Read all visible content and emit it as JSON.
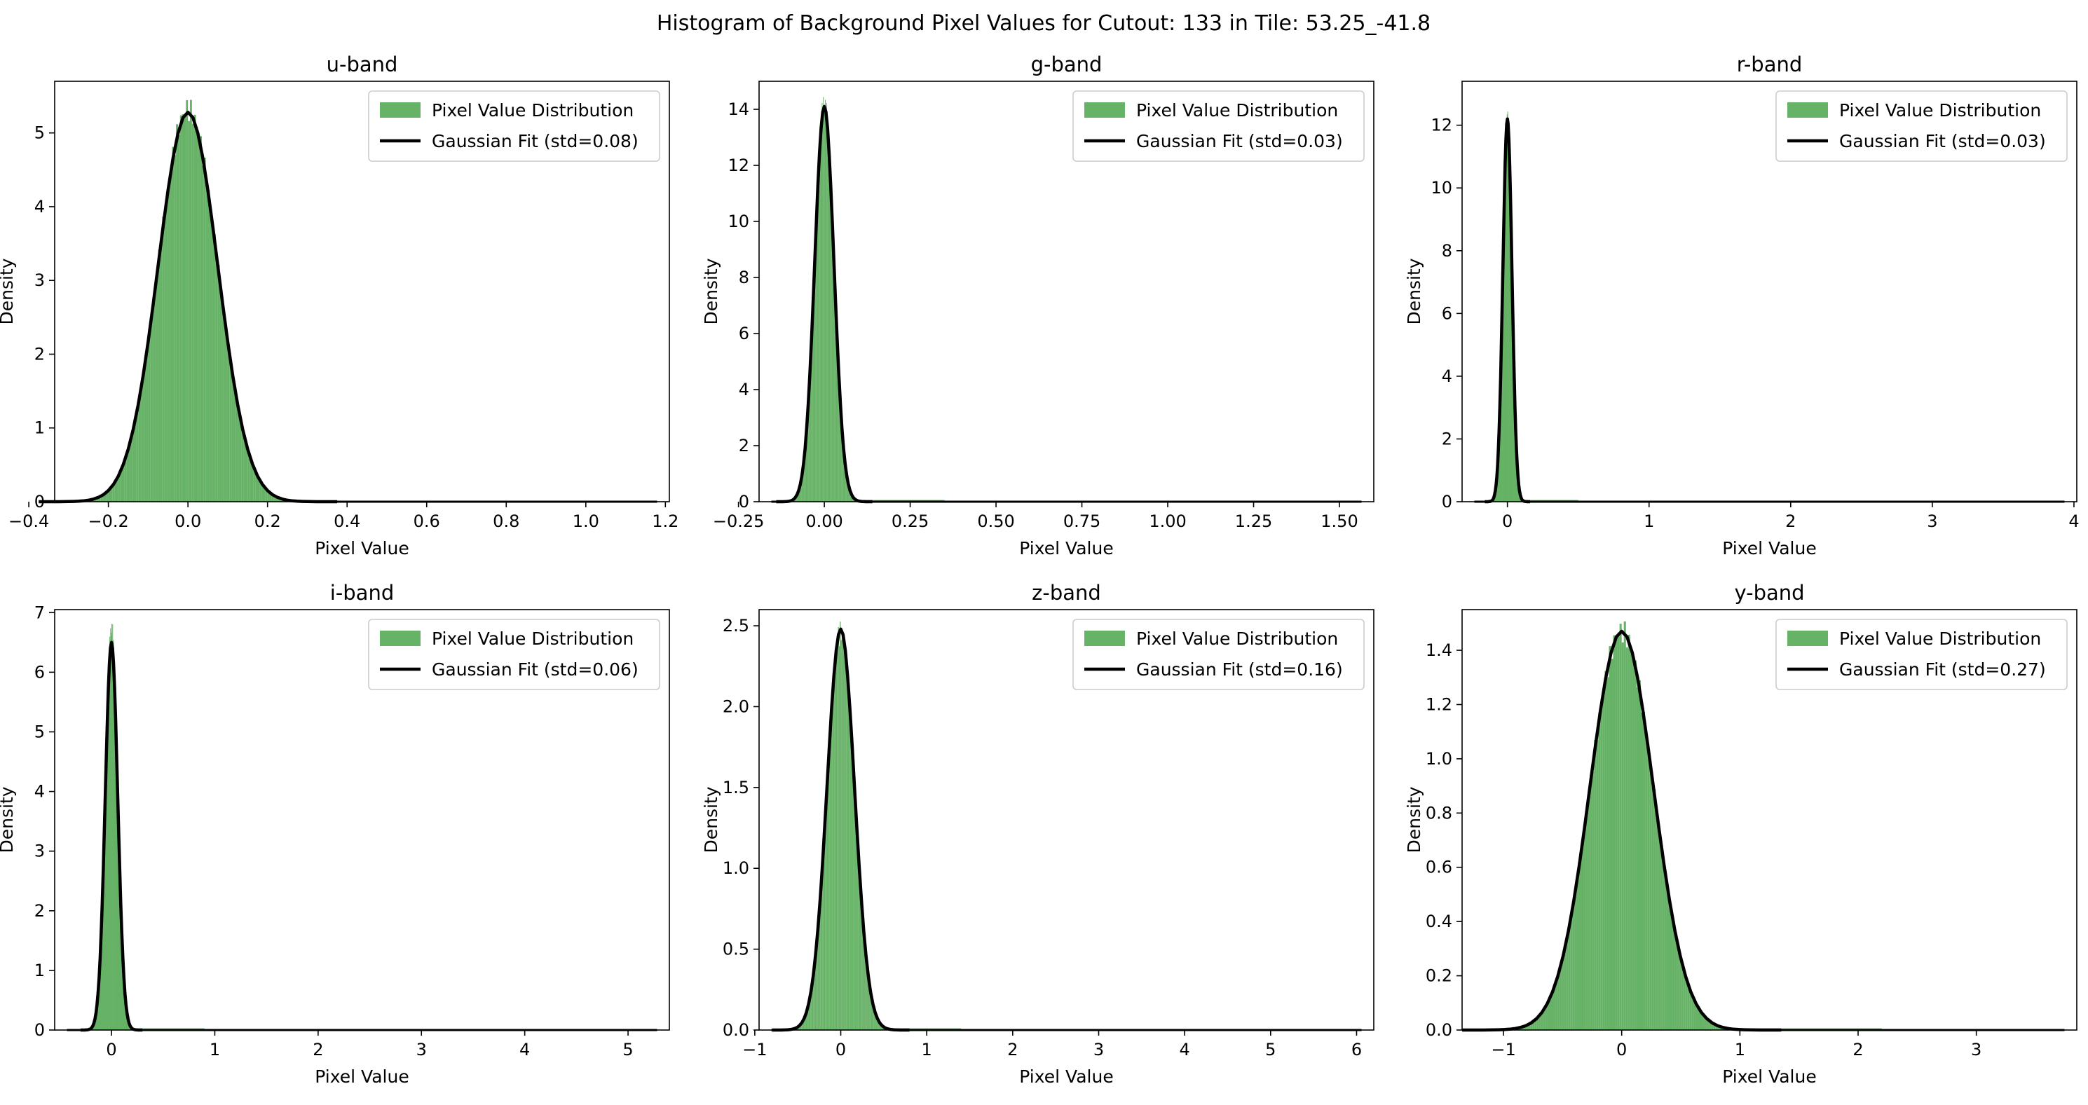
{
  "figure": {
    "suptitle": "Histogram of Background Pixel Values for Cutout: 133 in Tile: 53.25_-41.8",
    "hist_color": "#66b266",
    "fit_color": "#000000"
  },
  "chart_data": [
    {
      "type": "bar",
      "title": "u-band",
      "xlabel": "Pixel Value",
      "ylabel": "Density",
      "xlim": [
        -0.335,
        1.21
      ],
      "ylim": [
        0,
        5.7
      ],
      "xticks": [
        -0.4,
        -0.2,
        0.0,
        0.2,
        0.4,
        0.6,
        0.8,
        1.0,
        1.2
      ],
      "xtick_labels": [
        "−0.4",
        "−0.2",
        "0.0",
        "0.2",
        "0.4",
        "0.6",
        "0.8",
        "1.0",
        "1.2"
      ],
      "yticks": [
        0,
        1,
        2,
        3,
        4,
        5
      ],
      "ytick_labels": [
        "0",
        "1",
        "2",
        "3",
        "4",
        "5"
      ],
      "series": [
        {
          "name": "Pixel Value Distribution",
          "kind": "histogram",
          "mean": 0.0,
          "std": 0.075,
          "peak": 5.32,
          "tail_extent": 0.3
        },
        {
          "name": "Gaussian Fit (std=0.08)",
          "kind": "gaussian",
          "mean": 0.0,
          "std": 0.075,
          "peak": 5.28
        }
      ],
      "legend": "top-right"
    },
    {
      "type": "bar",
      "title": "g-band",
      "xlabel": "Pixel Value",
      "ylabel": "Density",
      "xlim": [
        -0.19,
        1.6
      ],
      "ylim": [
        0,
        15
      ],
      "xticks": [
        -0.25,
        0.0,
        0.25,
        0.5,
        0.75,
        1.0,
        1.25,
        1.5
      ],
      "xtick_labels": [
        "−0.25",
        "0.00",
        "0.25",
        "0.50",
        "0.75",
        "1.00",
        "1.25",
        "1.50"
      ],
      "yticks": [
        0,
        2,
        4,
        6,
        8,
        10,
        12,
        14
      ],
      "ytick_labels": [
        "0",
        "2",
        "4",
        "6",
        "8",
        "10",
        "12",
        "14"
      ],
      "series": [
        {
          "name": "Pixel Value Distribution",
          "kind": "histogram",
          "mean": 0.0,
          "std": 0.028,
          "peak": 14.2,
          "tail_extent": 0.35
        },
        {
          "name": "Gaussian Fit (std=0.03)",
          "kind": "gaussian",
          "mean": 0.0,
          "std": 0.028,
          "peak": 14.1
        }
      ],
      "legend": "top-right"
    },
    {
      "type": "bar",
      "title": "r-band",
      "xlabel": "Pixel Value",
      "ylabel": "Density",
      "xlim": [
        -0.32,
        4.02
      ],
      "ylim": [
        0,
        13.4
      ],
      "xticks": [
        0,
        1,
        2,
        3,
        4
      ],
      "xtick_labels": [
        "0",
        "1",
        "2",
        "3",
        "4"
      ],
      "yticks": [
        0,
        2,
        4,
        6,
        8,
        10,
        12
      ],
      "ytick_labels": [
        "0",
        "2",
        "4",
        "6",
        "8",
        "10",
        "12"
      ],
      "series": [
        {
          "name": "Pixel Value Distribution",
          "kind": "histogram",
          "mean": 0.0,
          "std": 0.032,
          "peak": 12.1,
          "tail_extent": 0.5
        },
        {
          "name": "Gaussian Fit (std=0.03)",
          "kind": "gaussian",
          "mean": 0.0,
          "std": 0.032,
          "peak": 12.2
        }
      ],
      "legend": "top-right"
    },
    {
      "type": "bar",
      "title": "i-band",
      "xlabel": "Pixel Value",
      "ylabel": "Density",
      "xlim": [
        -0.55,
        5.4
      ],
      "ylim": [
        0,
        7.05
      ],
      "xticks": [
        0,
        1,
        2,
        3,
        4,
        5
      ],
      "xtick_labels": [
        "0",
        "1",
        "2",
        "3",
        "4",
        "5"
      ],
      "yticks": [
        0,
        1,
        2,
        3,
        4,
        5,
        6,
        7
      ],
      "ytick_labels": [
        "0",
        "1",
        "2",
        "3",
        "4",
        "5",
        "6",
        "7"
      ],
      "series": [
        {
          "name": "Pixel Value Distribution",
          "kind": "histogram",
          "mean": 0.0,
          "std": 0.06,
          "peak": 6.7,
          "tail_extent": 0.9
        },
        {
          "name": "Gaussian Fit (std=0.06)",
          "kind": "gaussian",
          "mean": 0.0,
          "std": 0.06,
          "peak": 6.5
        }
      ],
      "legend": "top-right"
    },
    {
      "type": "bar",
      "title": "z-band",
      "xlabel": "Pixel Value",
      "ylabel": "Density",
      "xlim": [
        -0.95,
        6.2
      ],
      "ylim": [
        0,
        2.6
      ],
      "xticks": [
        -1,
        0,
        1,
        2,
        3,
        4,
        5,
        6
      ],
      "xtick_labels": [
        "−1",
        "0",
        "1",
        "2",
        "3",
        "4",
        "5",
        "6"
      ],
      "yticks": [
        0.0,
        0.5,
        1.0,
        1.5,
        2.0,
        2.5
      ],
      "ytick_labels": [
        "0.0",
        "0.5",
        "1.0",
        "1.5",
        "2.0",
        "2.5"
      ],
      "series": [
        {
          "name": "Pixel Value Distribution",
          "kind": "histogram",
          "mean": 0.0,
          "std": 0.16,
          "peak": 2.46,
          "tail_extent": 1.4
        },
        {
          "name": "Gaussian Fit (std=0.16)",
          "kind": "gaussian",
          "mean": 0.0,
          "std": 0.16,
          "peak": 2.48
        }
      ],
      "legend": "top-right"
    },
    {
      "type": "bar",
      "title": "y-band",
      "xlabel": "Pixel Value",
      "ylabel": "Density",
      "xlim": [
        -1.35,
        3.85
      ],
      "ylim": [
        0,
        1.55
      ],
      "xticks": [
        -1,
        0,
        1,
        2,
        3,
        4
      ],
      "xtick_labels": [
        "−1",
        "0",
        "1",
        "2",
        "3",
        "4"
      ],
      "yticks": [
        0.0,
        0.2,
        0.4,
        0.6,
        0.8,
        1.0,
        1.2,
        1.4
      ],
      "ytick_labels": [
        "0.0",
        "0.2",
        "0.4",
        "0.6",
        "0.8",
        "1.0",
        "1.2",
        "1.4"
      ],
      "series": [
        {
          "name": "Pixel Value Distribution",
          "kind": "histogram",
          "mean": 0.0,
          "std": 0.27,
          "peak": 1.47,
          "tail_extent": 2.2
        },
        {
          "name": "Gaussian Fit (std=0.27)",
          "kind": "gaussian",
          "mean": 0.0,
          "std": 0.27,
          "peak": 1.47
        }
      ],
      "legend": "top-right"
    }
  ]
}
